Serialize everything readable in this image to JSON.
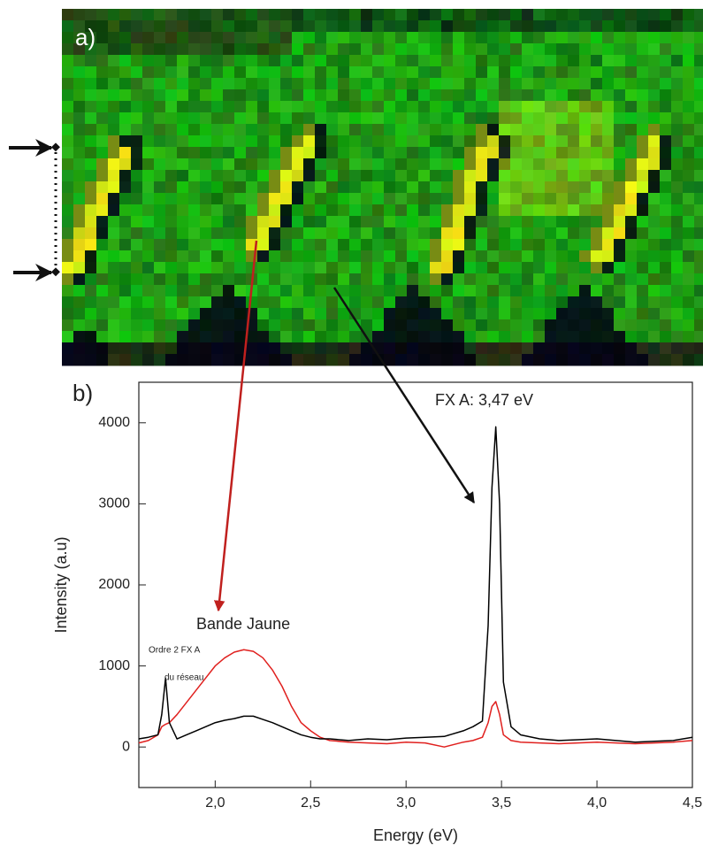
{
  "chart_data": {
    "type": "line",
    "panel_labels": [
      "a)",
      "b)"
    ],
    "xlabel": "Energy (eV)",
    "ylabel": "Intensity (a.u)",
    "annotations": [
      "FX A: 3,47 eV",
      "Bande Jaune",
      "Ordre 2 FX A",
      "du réseau"
    ],
    "x": [
      1.6,
      1.65,
      1.7,
      1.72,
      1.74,
      1.76,
      1.8,
      1.85,
      1.9,
      1.95,
      2.0,
      2.05,
      2.1,
      2.15,
      2.2,
      2.25,
      2.3,
      2.35,
      2.4,
      2.45,
      2.5,
      2.55,
      2.6,
      2.7,
      2.8,
      2.9,
      3.0,
      3.1,
      3.2,
      3.3,
      3.35,
      3.4,
      3.43,
      3.45,
      3.47,
      3.49,
      3.51,
      3.55,
      3.6,
      3.7,
      3.8,
      3.9,
      4.0,
      4.1,
      4.2,
      4.3,
      4.4,
      4.5
    ],
    "series": [
      {
        "color": "#000000",
        "values": [
          100,
          120,
          150,
          400,
          850,
          300,
          100,
          150,
          200,
          250,
          300,
          330,
          350,
          380,
          380,
          340,
          300,
          250,
          200,
          150,
          120,
          100,
          100,
          80,
          100,
          90,
          110,
          120,
          130,
          200,
          250,
          320,
          1500,
          3200,
          3950,
          3000,
          800,
          250,
          150,
          100,
          80,
          90,
          100,
          80,
          60,
          70,
          80,
          120
        ]
      },
      {
        "color": "#e0201e",
        "values": [
          50,
          80,
          150,
          250,
          280,
          300,
          400,
          550,
          700,
          850,
          1000,
          1100,
          1170,
          1200,
          1180,
          1100,
          950,
          750,
          500,
          300,
          200,
          120,
          80,
          60,
          50,
          40,
          60,
          50,
          0,
          60,
          80,
          120,
          300,
          500,
          560,
          400,
          150,
          80,
          60,
          50,
          40,
          50,
          60,
          50,
          40,
          50,
          60,
          80
        ]
      }
    ],
    "xlim": [
      1.6,
      4.5
    ],
    "xticks": [
      {
        "value": 2.0,
        "label": "2,0"
      },
      {
        "value": 2.5,
        "label": "2,5"
      },
      {
        "value": 3.0,
        "label": "3,0"
      },
      {
        "value": 3.5,
        "label": "3,5"
      },
      {
        "value": 4.0,
        "label": "4,0"
      },
      {
        "value": 4.5,
        "label": "4,5"
      }
    ],
    "ylim": [
      -500,
      4500
    ],
    "yticks": [
      0,
      1000,
      2000,
      3000,
      4000
    ]
  }
}
